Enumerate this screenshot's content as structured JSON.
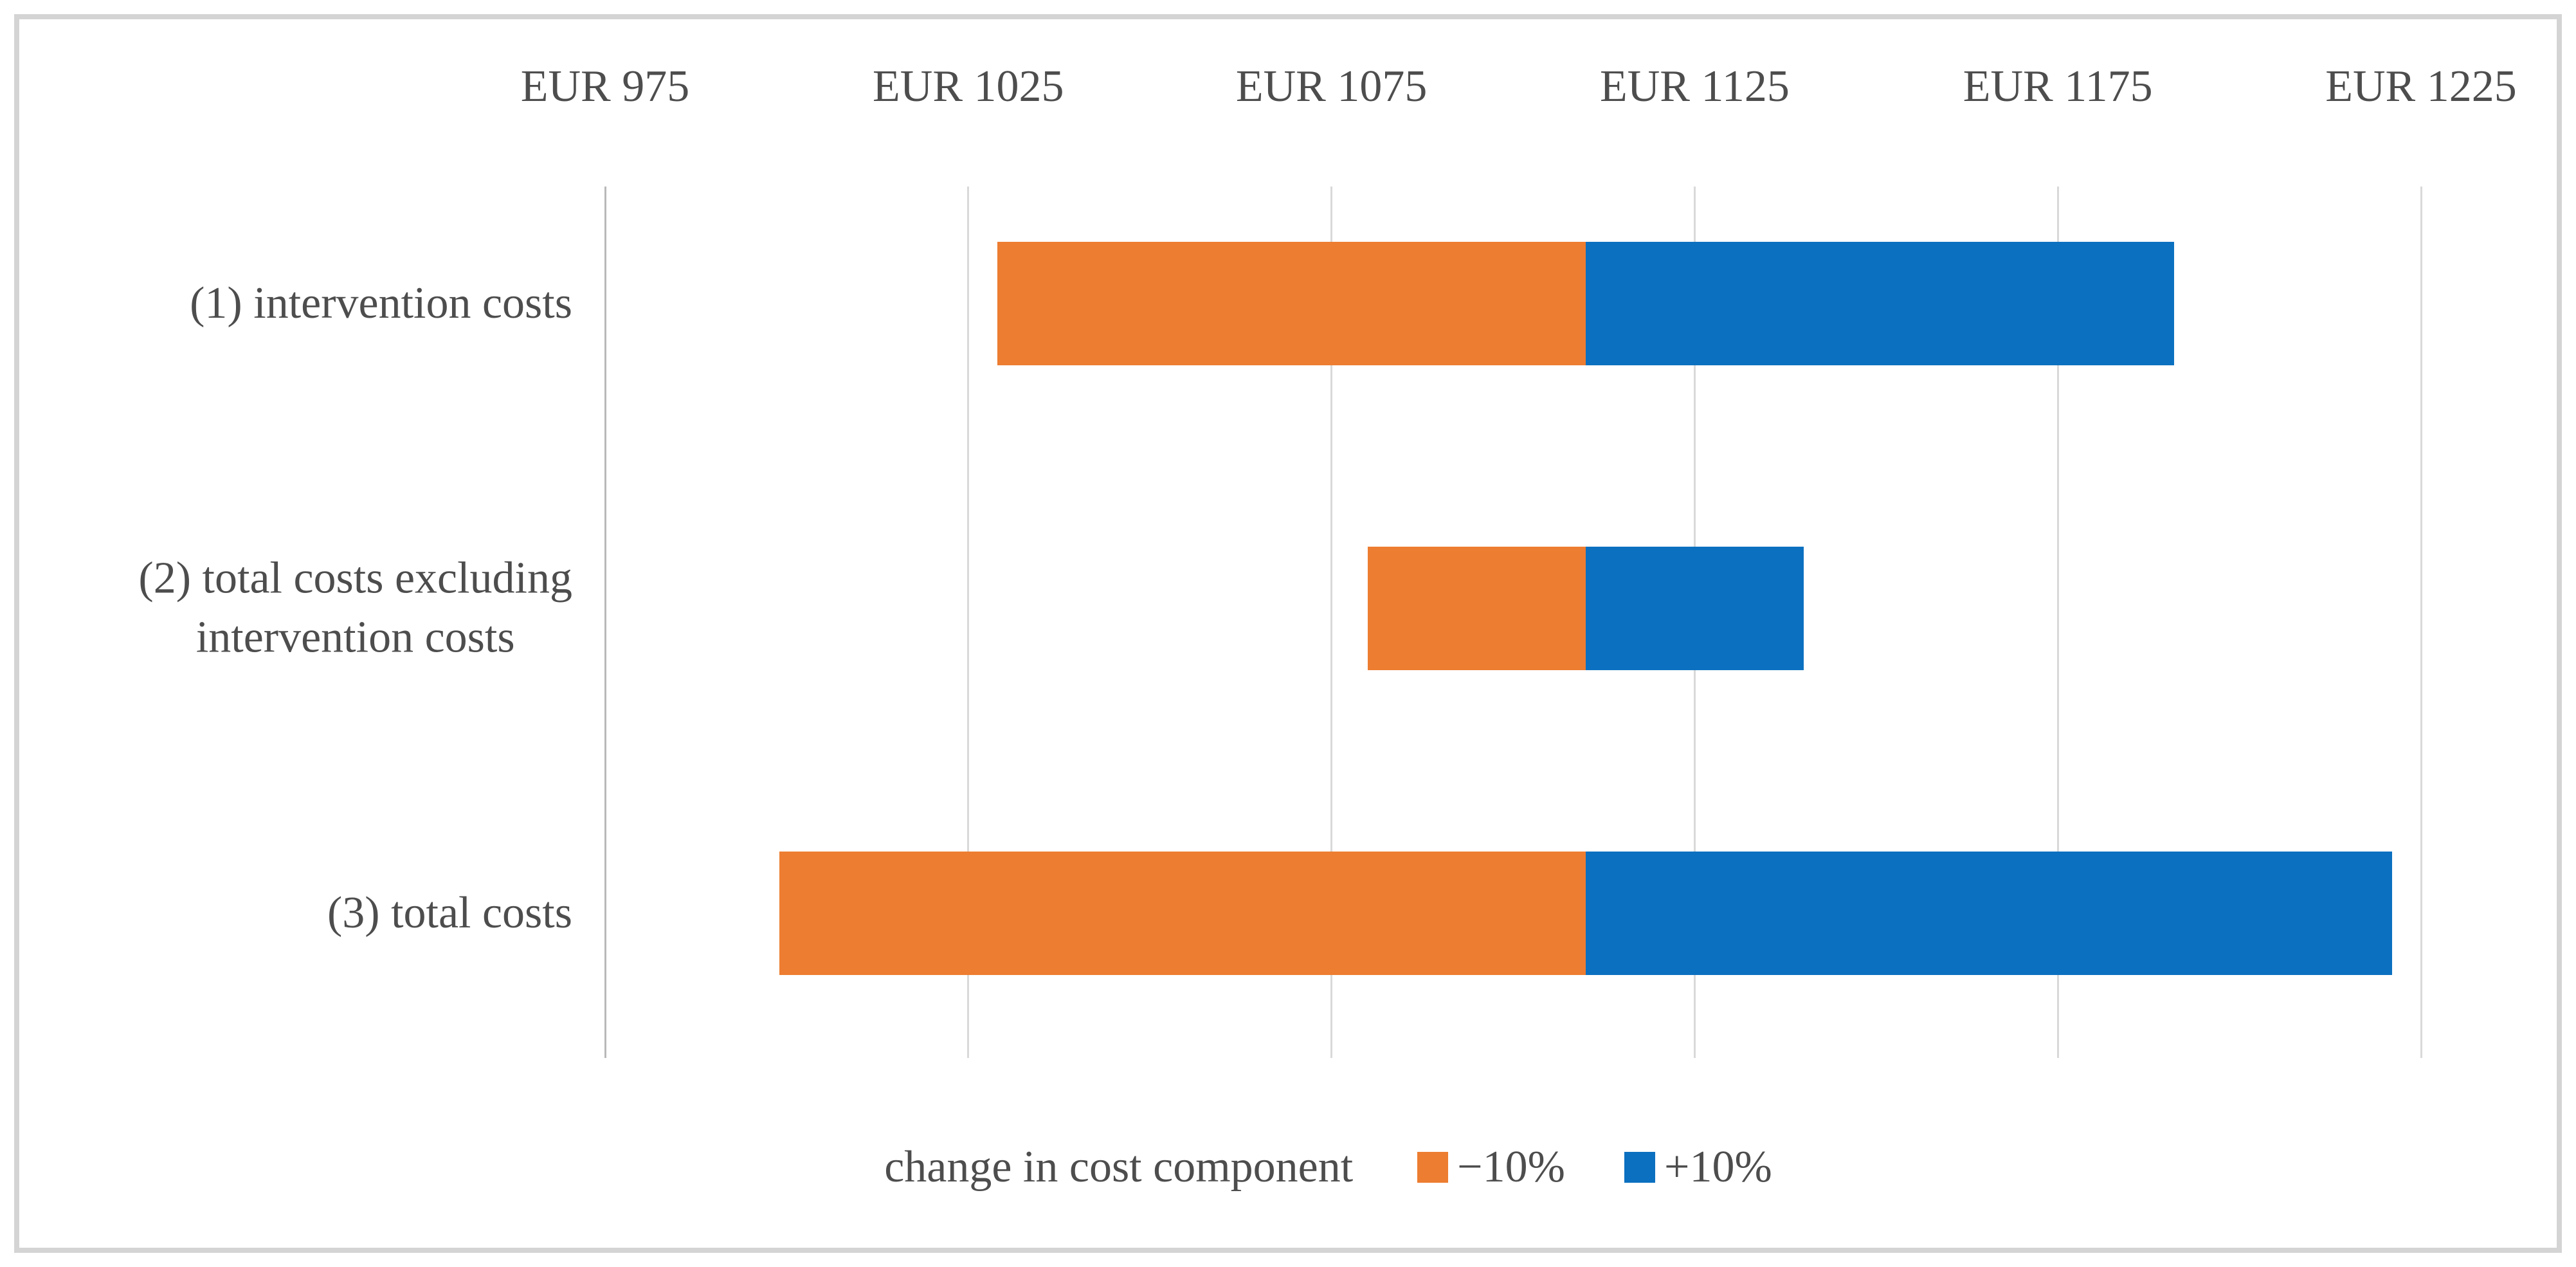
{
  "figure": {
    "background": "#ffffff",
    "frame_border_color": "#d4d4d4",
    "gridline_color": "#d9d9d9",
    "axis_line_color": "#b9b9b9",
    "text_color": "#4d4d4d"
  },
  "chart_data": {
    "type": "bar",
    "subtype": "tornado",
    "orientation": "horizontal",
    "title": "",
    "categories": [
      "(1) intervention costs",
      "(2) total costs excluding\nintervention costs",
      "(3) total costs"
    ],
    "base_value": 1110,
    "series": [
      {
        "name": "−10%",
        "color": "#ed7d31",
        "ends": [
          1029,
          1080,
          999
        ]
      },
      {
        "name": "+10%",
        "color": "#0b70c0",
        "ends": [
          1191,
          1140,
          1221
        ]
      }
    ],
    "x_axis": {
      "unit": "EUR",
      "tick_labels": [
        "EUR 975",
        "EUR 1025",
        "EUR 1075",
        "EUR 1125",
        "EUR 1175",
        "EUR 1225"
      ],
      "tick_values": [
        975,
        1025,
        1075,
        1125,
        1175,
        1225
      ],
      "min": 975,
      "max": 1225,
      "gridlines": true
    },
    "legend": {
      "label": "change in cost component",
      "position": "bottom"
    }
  }
}
